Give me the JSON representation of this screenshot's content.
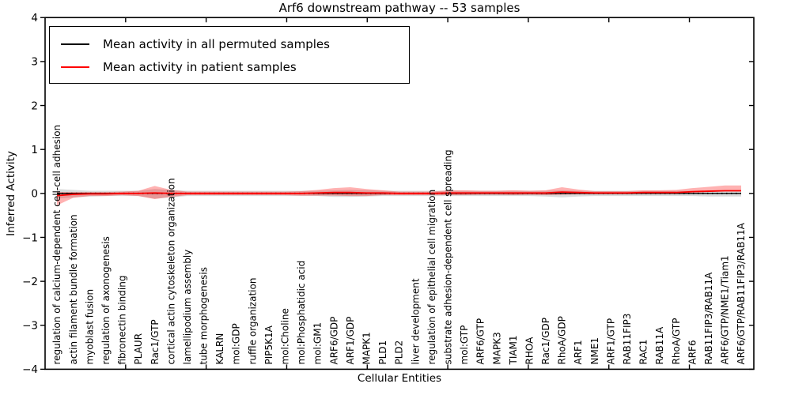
{
  "chart_data": {
    "type": "line",
    "title": "Arf6 downstream pathway -- 53 samples",
    "xlabel": "Cellular Entities",
    "ylabel": "Inferred Activity",
    "ylim": [
      -4,
      4
    ],
    "ytick_values": [
      4,
      3,
      2,
      1,
      0,
      -1,
      -2,
      -3,
      -4
    ],
    "ytick_labels": [
      "4",
      "3",
      "2",
      "1",
      "0",
      "−1",
      "−2",
      "−3",
      "−4"
    ],
    "grid": false,
    "legend_position": "upper left",
    "categories": [
      "regulation of calcium-dependent cell-cell adhesion",
      "actin filament bundle formation",
      "myoblast fusion",
      "regulation of axonogenesis",
      "fibronectin binding",
      "PLAUR",
      "Rac1/GTP",
      "cortical actin cytoskeleton organization",
      "lamellipodium assembly",
      "tube morphogenesis",
      "KALRN",
      "mol:GDP",
      "ruffle organization",
      "PIP5K1A",
      "mol:Choline",
      "mol:Phosphatidic acid",
      "mol:GM1",
      "ARF6/GDP",
      "ARF1/GDP",
      "MAPK1",
      "PLD1",
      "PLD2",
      "liver development",
      "regulation of epithelial cell migration",
      "substrate adhesion-dependent cell spreading",
      "mol:GTP",
      "ARF6/GTP",
      "MAPK3",
      "TIAM1",
      "RHOA",
      "Rac1/GDP",
      "RhoA/GDP",
      "ARF1",
      "NME1",
      "ARF1/GTP",
      "RAB11FIP3",
      "RAC1",
      "RAB11A",
      "RhoA/GTP",
      "ARF6",
      "RAB11FIP3/RAB11A",
      "ARF6/GTP/NME1/Tiam1",
      "ARF6/GTP/RAB11FIP3/RAB11A"
    ],
    "series": [
      {
        "name": "Mean activity in all permuted samples",
        "color": "#000000",
        "values": [
          0,
          0,
          0,
          0,
          0,
          0,
          0,
          0,
          0,
          0,
          0,
          0,
          0,
          0,
          0,
          0,
          0,
          0,
          0,
          0,
          0,
          0,
          0,
          0,
          0,
          0,
          0,
          0,
          0,
          0,
          0,
          0,
          0,
          0,
          0,
          0,
          0,
          0,
          0,
          0,
          0,
          0,
          0
        ],
        "band_hi": [
          0.1,
          0.08,
          0.06,
          0.06,
          0.06,
          0.06,
          0.1,
          0.08,
          0.06,
          0.06,
          0.06,
          0.06,
          0.06,
          0.06,
          0.06,
          0.06,
          0.06,
          0.07,
          0.08,
          0.07,
          0.06,
          0.06,
          0.06,
          0.06,
          0.06,
          0.06,
          0.06,
          0.06,
          0.06,
          0.06,
          0.06,
          0.07,
          0.06,
          0.06,
          0.06,
          0.06,
          0.06,
          0.06,
          0.06,
          0.06,
          0.07,
          0.07,
          0.07
        ],
        "band_lo": [
          -0.12,
          -0.09,
          -0.07,
          -0.06,
          -0.06,
          -0.06,
          -0.12,
          -0.09,
          -0.06,
          -0.06,
          -0.06,
          -0.06,
          -0.06,
          -0.06,
          -0.06,
          -0.06,
          -0.06,
          -0.08,
          -0.08,
          -0.07,
          -0.06,
          -0.06,
          -0.06,
          -0.06,
          -0.06,
          -0.06,
          -0.06,
          -0.06,
          -0.06,
          -0.06,
          -0.07,
          -0.09,
          -0.07,
          -0.06,
          -0.06,
          -0.06,
          -0.06,
          -0.06,
          -0.06,
          -0.06,
          -0.07,
          -0.07,
          -0.07
        ],
        "band_color": "rgba(0,0,0,0.14)"
      },
      {
        "name": "Mean activity in patient samples",
        "color": "#ff0000",
        "values": [
          -0.05,
          -0.02,
          -0.01,
          -0.01,
          0,
          0,
          0.01,
          0,
          0,
          0,
          0,
          0,
          0,
          0,
          0,
          0,
          0.01,
          0.02,
          0.02,
          0.01,
          0.01,
          0,
          0,
          0,
          0.01,
          0.01,
          0.01,
          0.01,
          0.01,
          0.01,
          0.01,
          0.03,
          0.02,
          0.01,
          0.01,
          0.01,
          0.02,
          0.02,
          0.02,
          0.04,
          0.05,
          0.06,
          0.06
        ],
        "band_hi": [
          0.08,
          0.05,
          0.04,
          0.04,
          0.04,
          0.06,
          0.16,
          0.08,
          0.04,
          0.04,
          0.04,
          0.04,
          0.04,
          0.04,
          0.04,
          0.05,
          0.07,
          0.1,
          0.12,
          0.09,
          0.06,
          0.04,
          0.04,
          0.04,
          0.06,
          0.06,
          0.05,
          0.05,
          0.06,
          0.05,
          0.06,
          0.11,
          0.07,
          0.04,
          0.04,
          0.04,
          0.05,
          0.05,
          0.06,
          0.08,
          0.1,
          0.12,
          0.12
        ],
        "band_lo": [
          -0.22,
          -0.08,
          -0.05,
          -0.05,
          -0.04,
          -0.06,
          -0.14,
          -0.08,
          -0.04,
          -0.04,
          -0.04,
          -0.04,
          -0.04,
          -0.04,
          -0.04,
          -0.05,
          -0.06,
          -0.07,
          -0.08,
          -0.07,
          -0.05,
          -0.04,
          -0.04,
          -0.04,
          -0.05,
          -0.05,
          -0.04,
          -0.04,
          -0.05,
          -0.04,
          -0.05,
          -0.06,
          -0.04,
          -0.03,
          -0.03,
          -0.03,
          -0.03,
          -0.03,
          -0.03,
          -0.02,
          -0.02,
          -0.01,
          0
        ],
        "band_color": "rgba(255,0,0,0.30)"
      }
    ],
    "zero_line": {
      "value": 0,
      "style": "dotted",
      "color": "#000000"
    }
  }
}
